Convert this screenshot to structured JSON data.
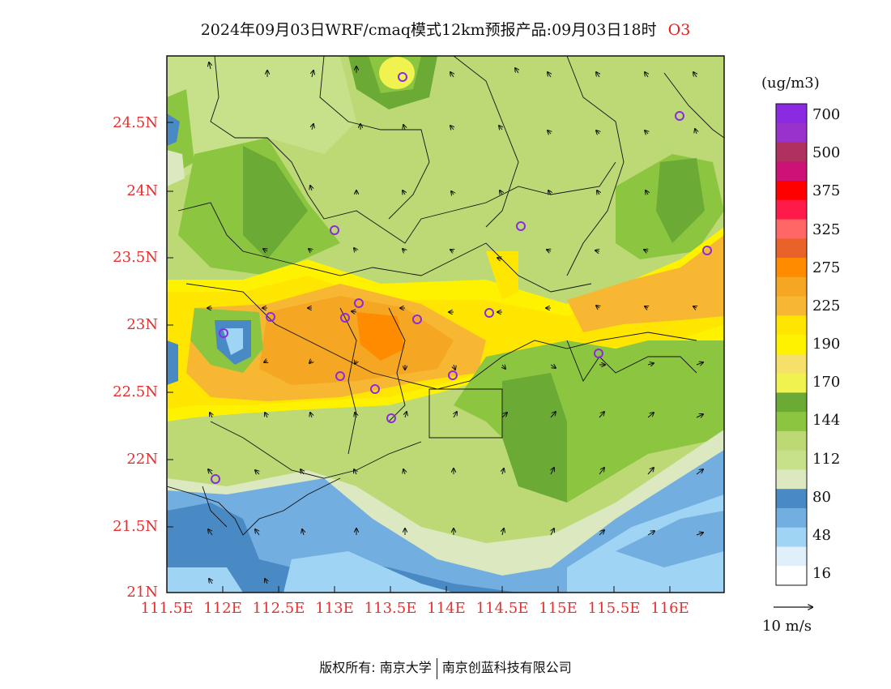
{
  "title": {
    "main": "2024年09月03日WRF/cmaq模式12km预报产品:09月03日18时",
    "species": "O3"
  },
  "map": {
    "lat_labels": [
      "24.5N",
      "24N",
      "23.5N",
      "23N",
      "22.5N",
      "22N",
      "21.5N",
      "21N"
    ],
    "lon_labels": [
      "111.5E",
      "112E",
      "112.5E",
      "113E",
      "113.5E",
      "114E",
      "114.5E",
      "115E",
      "115.5E",
      "116E"
    ]
  },
  "colorbar": {
    "unit": "(ug/m3)",
    "labels": [
      "700",
      "500",
      "375",
      "325",
      "275",
      "225",
      "190",
      "170",
      "144",
      "112",
      "80",
      "48",
      "16"
    ],
    "colors": [
      "#8a2be2",
      "#9932cc",
      "#b03060",
      "#cc1177",
      "#ff0000",
      "#ff1a4a",
      "#ff6666",
      "#e8622a",
      "#ff8c00",
      "#f5a623",
      "#f7b733",
      "#ffe600",
      "#fff200",
      "#f7e06a",
      "#f0f250",
      "#6aaa35",
      "#8cc640",
      "#bcd975",
      "#c7e08a",
      "#dbe8c0",
      "#4a8ac4",
      "#72aee0",
      "#a0d4f5",
      "#dff0fb",
      "#ffffff"
    ]
  },
  "wind": {
    "label": "10 m/s"
  },
  "footer": {
    "left": "版权所有: 南京大学",
    "right": "南京创蓝科技有限公司"
  }
}
